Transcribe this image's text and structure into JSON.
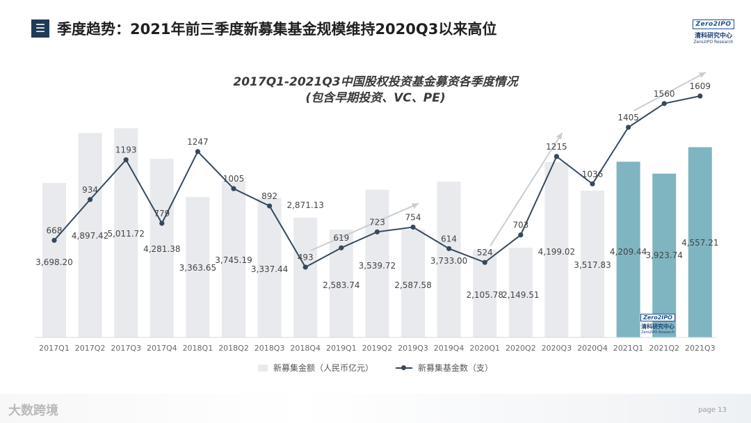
{
  "header": {
    "icon_symbol": "☰",
    "title": "季度趋势：2021年前三季度新募集基金规模维持2020Q3以来高位"
  },
  "brand": {
    "logo_text": "Zero2IPO",
    "name_cn": "清科研究中心",
    "name_en": "Zero2IPO Research"
  },
  "footer": {
    "watermark": "大数跨境",
    "page_label": "page",
    "page_number": "13"
  },
  "chart_data": {
    "type": "bar",
    "title": "2017Q1-2021Q3中国股权投资基金募资各季度情况",
    "subtitle": "(包含早期投资、VC、PE)",
    "categories": [
      "2017Q1",
      "2017Q2",
      "2017Q3",
      "2017Q4",
      "2018Q1",
      "2018Q2",
      "2018Q3",
      "2018Q4",
      "2019Q1",
      "2019Q2",
      "2019Q3",
      "2019Q4",
      "2020Q1",
      "2020Q2",
      "2020Q3",
      "2020Q4",
      "2021Q1",
      "2021Q2",
      "2021Q3"
    ],
    "series": [
      {
        "name": "新募集金额（人民币亿元）",
        "chart_type": "bar",
        "color": "#e8eaed",
        "highlight_color": "#7fb5c1",
        "highlight_categories": [
          "2021Q1",
          "2021Q2",
          "2021Q3"
        ],
        "values": [
          3698.2,
          4897.42,
          5011.72,
          4281.38,
          3363.65,
          3745.19,
          3337.44,
          2871.13,
          2583.74,
          3539.72,
          2587.58,
          3733.0,
          2105.78,
          2149.51,
          4199.02,
          3517.83,
          4209.44,
          3923.74,
          4557.21
        ],
        "labels": [
          "3,698.20",
          "4,897.42",
          "5,011.72",
          "4,281.38",
          "3,363.65",
          "3,745.19",
          "3,337.44",
          "2,871.13",
          "2,583.74",
          "3,539.72",
          "2,587.58",
          "3,733.00",
          "2,105.78",
          "2,149.51",
          "4,199.02",
          "3,517.83",
          "4,209.44",
          "3,923.74",
          "4,557.21"
        ]
      },
      {
        "name": "新募集基金数（支）",
        "chart_type": "line",
        "color": "#34495e",
        "values": [
          668,
          934,
          1193,
          779,
          1247,
          1005,
          892,
          493,
          619,
          723,
          754,
          614,
          524,
          703,
          1215,
          1036,
          1405,
          1560,
          1609
        ],
        "labels": [
          "668",
          "934",
          "1193",
          "779",
          "1247",
          "1005",
          "892",
          "493",
          "619",
          "723",
          "754",
          "614",
          "524",
          "703",
          "1215",
          "1036",
          "1405",
          "1560",
          "1609"
        ]
      }
    ],
    "trend_arrows": [
      "2018Q4-2019Q3",
      "2020Q1-2020Q3",
      "2021Q1-2021Q3"
    ],
    "trend_arrow_color": "#c9cdd2",
    "legend_position": "bottom",
    "grid": false,
    "ylim_bar": [
      0,
      6000
    ],
    "ylim_line": [
      -600,
      2000
    ]
  }
}
